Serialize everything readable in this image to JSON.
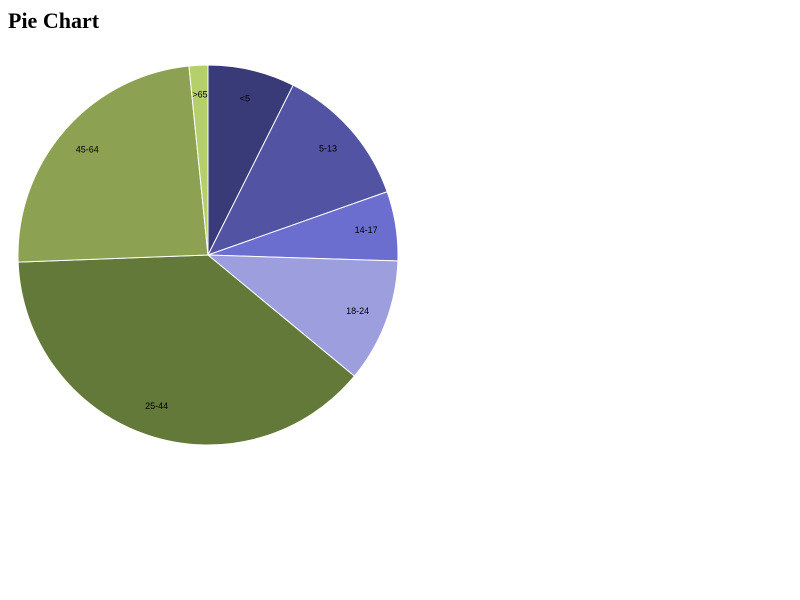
{
  "chart_data": {
    "type": "pie",
    "title": "Pie Chart",
    "categories": [
      "<5",
      "5-13",
      "14-17",
      "18-24",
      "25-44",
      "45-64",
      ">65"
    ],
    "values": [
      7.4,
      12.2,
      5.9,
      10.5,
      38.4,
      24.0,
      1.6
    ],
    "colors": [
      "#393b79",
      "#5254a3",
      "#6b6ecf",
      "#9c9ede",
      "#637939",
      "#8ca252",
      "#b5cf6b"
    ]
  }
}
